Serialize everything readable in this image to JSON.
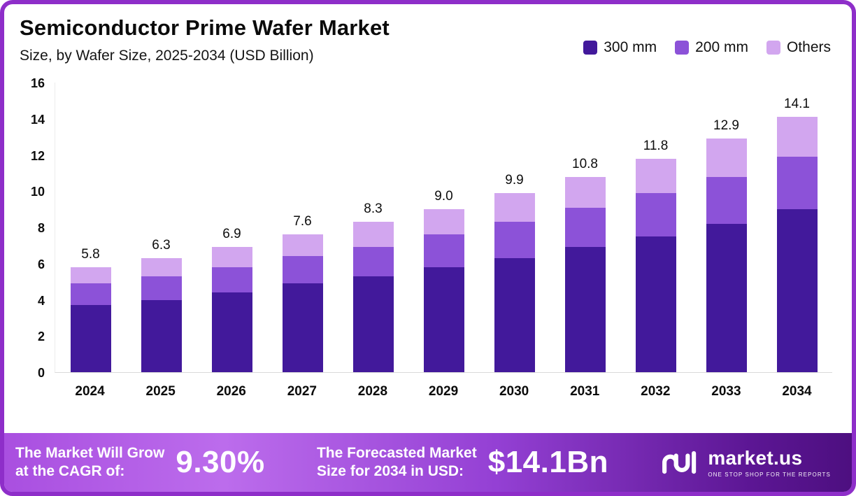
{
  "header": {
    "title": "Semiconductor Prime Wafer Market",
    "subtitle": "Size, by Wafer Size, 2025-2034 (USD Billion)"
  },
  "legend": [
    {
      "label": "300 mm",
      "color": "#42199B"
    },
    {
      "label": "200 mm",
      "color": "#8C52D8"
    },
    {
      "label": "Others",
      "color": "#D2A6EF"
    }
  ],
  "chart_data": {
    "type": "bar",
    "stacked": true,
    "title": "Semiconductor Prime Wafer Market Size, by Wafer Size, 2025-2034 (USD Billion)",
    "xlabel": "",
    "ylabel": "",
    "ylim": [
      0,
      16
    ],
    "yticks": [
      0,
      2,
      4,
      6,
      8,
      10,
      12,
      14,
      16
    ],
    "grid": false,
    "legend_position": "top-right",
    "categories": [
      "2024",
      "2025",
      "2026",
      "2027",
      "2028",
      "2029",
      "2030",
      "2031",
      "2032",
      "2033",
      "2034"
    ],
    "series": [
      {
        "name": "300 mm",
        "color": "#42199B",
        "values": [
          3.7,
          4.0,
          4.4,
          4.9,
          5.3,
          5.8,
          6.3,
          6.9,
          7.5,
          8.2,
          9.0
        ]
      },
      {
        "name": "200 mm",
        "color": "#8C52D8",
        "values": [
          1.2,
          1.3,
          1.4,
          1.5,
          1.6,
          1.8,
          2.0,
          2.2,
          2.4,
          2.6,
          2.9
        ]
      },
      {
        "name": "Others",
        "color": "#D2A6EF",
        "values": [
          0.9,
          1.0,
          1.1,
          1.2,
          1.4,
          1.4,
          1.6,
          1.7,
          1.9,
          2.1,
          2.2
        ]
      }
    ],
    "totals": [
      "5.8",
      "6.3",
      "6.9",
      "7.6",
      "8.3",
      "9.0",
      "9.9",
      "10.8",
      "11.8",
      "12.9",
      "14.1"
    ]
  },
  "banner": {
    "cagr_label": "The Market Will Grow\nat the CAGR of:",
    "cagr_value": "9.30%",
    "forecast_label": "The Forecasted Market\nSize for 2034 in USD:",
    "forecast_value": "$14.1Bn",
    "brand": "market.us",
    "brand_tagline": "ONE STOP SHOP FOR THE REPORTS"
  }
}
